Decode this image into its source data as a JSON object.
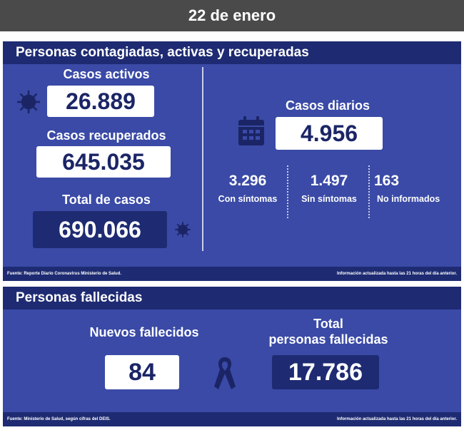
{
  "header": {
    "date": "22 de enero"
  },
  "contagiados": {
    "title": "Personas contagiadas, activas y recuperadas",
    "activos": {
      "label": "Casos activos",
      "value": "26.889"
    },
    "recuperados": {
      "label": "Casos recuperados",
      "value": "645.035"
    },
    "total": {
      "label": "Total de casos",
      "value": "690.066"
    },
    "diarios": {
      "label": "Casos diarios",
      "value": "4.956",
      "breakdown": [
        {
          "value": "3.296",
          "label": "Con síntomas"
        },
        {
          "value": "1.497",
          "label": "Sin síntomas"
        },
        {
          "value": "163",
          "label": "No informados"
        }
      ]
    },
    "footer_left": "Fuente: Reporte Diario Coronavirus Ministerio de Salud.",
    "footer_right": "Información actualizada hasta las 21 horas del día anterior."
  },
  "fallecidas": {
    "title": "Personas fallecidas",
    "nuevos": {
      "label": "Nuevos fallecidos",
      "value": "84"
    },
    "total": {
      "label_line1": "Total",
      "label_line2": "personas fallecidas",
      "value": "17.786"
    },
    "footer_left": "Fuente: Ministerio de Salud, según cifras del DEIS.",
    "footer_right": "Información actualizada hasta las 21 horas del día anterior."
  },
  "colors": {
    "header_bg": "#4a4a4a",
    "panel_bg": "#3a4aa6",
    "bar_bg": "#1e2b72",
    "value_text": "#1b2566"
  },
  "icons": [
    "virus-icon",
    "calendar-icon",
    "ribbon-icon"
  ]
}
